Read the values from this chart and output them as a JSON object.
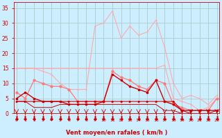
{
  "x": [
    0,
    1,
    2,
    3,
    4,
    5,
    6,
    7,
    8,
    9,
    10,
    11,
    12,
    13,
    14,
    15,
    16,
    17,
    18,
    19,
    20,
    21,
    22,
    23
  ],
  "wind_gust_peak": [
    15,
    15,
    15,
    14,
    13,
    10,
    8,
    8,
    8,
    29,
    30,
    34,
    25,
    29,
    26,
    27,
    31,
    22,
    10,
    5,
    6,
    5,
    3,
    6
  ],
  "wind_gust_upper": [
    15,
    15,
    15,
    15,
    15,
    15,
    15,
    15,
    15,
    15,
    15,
    15,
    15,
    15,
    15,
    15,
    15,
    16,
    5,
    4,
    3,
    1,
    2,
    5
  ],
  "wind_gust_med": [
    7,
    5,
    11,
    10,
    9,
    9,
    8,
    4,
    4,
    4,
    4,
    14,
    12,
    11,
    9,
    8,
    11,
    10,
    3,
    2,
    1,
    1,
    1,
    5
  ],
  "wind_avg": [
    5,
    7,
    5,
    4,
    4,
    4,
    3,
    3,
    3,
    3,
    4,
    13,
    11,
    9,
    8,
    7,
    11,
    4,
    3,
    1,
    1,
    1,
    1,
    1
  ],
  "wind_min": [
    4,
    4,
    2,
    2,
    2,
    3,
    3,
    3,
    3,
    3,
    3,
    3,
    3,
    3,
    3,
    3,
    3,
    1,
    1,
    0,
    0,
    0,
    0,
    0
  ],
  "wind_flat": [
    4,
    4,
    4,
    4,
    4,
    4,
    4,
    4,
    4,
    4,
    4,
    4,
    4,
    4,
    4,
    4,
    4,
    4,
    4,
    1,
    0,
    0,
    0,
    1
  ],
  "bg_color": "#cceeff",
  "grid_color": "#aacccc",
  "color_light": "#ffaaaa",
  "color_mid": "#ff7777",
  "color_dark": "#cc0000",
  "axis_color": "#cc0000",
  "xlabel": "Vent moyen/en rafales ( km/h )",
  "ylabel_ticks": [
    0,
    5,
    10,
    15,
    20,
    25,
    30,
    35
  ],
  "ylim": [
    0,
    37
  ],
  "xlim": [
    -0.3,
    23.3
  ]
}
